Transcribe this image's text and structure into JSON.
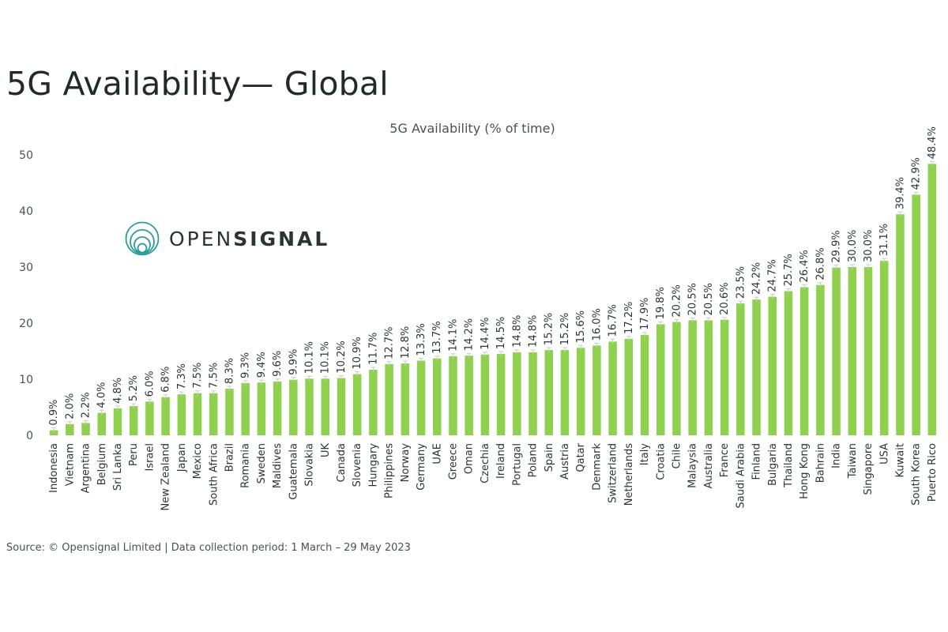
{
  "header": {
    "title": "5G Availability— Global"
  },
  "logo": {
    "icon": "opensignal-rings-icon",
    "text_light": "OPEN",
    "text_bold": "SIGNAL",
    "ring_color": "#2a9d9a"
  },
  "footer": {
    "source": "Source: © Opensignal Limited",
    "separator": "|",
    "period": "Data collection period: 1 March – 29 May 2023"
  },
  "chart_data": {
    "type": "bar",
    "title": "5G Availability (% of time)",
    "xlabel": "",
    "ylabel": "",
    "ylim": [
      0,
      50
    ],
    "yticks": [
      0,
      10,
      20,
      30,
      40,
      50
    ],
    "bar_color": "#8fd14f",
    "value_suffix": "%",
    "categories": [
      "Indonesia",
      "Vietnam",
      "Argentina",
      "Belgium",
      "Sri Lanka",
      "Peru",
      "Israel",
      "New Zealand",
      "Japan",
      "Mexico",
      "South Africa",
      "Brazil",
      "Romania",
      "Sweden",
      "Maldives",
      "Guatemala",
      "Slovakia",
      "UK",
      "Canada",
      "Slovenia",
      "Hungary",
      "Philippines",
      "Norway",
      "Germany",
      "UAE",
      "Greece",
      "Oman",
      "Czechia",
      "Ireland",
      "Portugal",
      "Poland",
      "Spain",
      "Austria",
      "Qatar",
      "Denmark",
      "Switzerland",
      "Netherlands",
      "Italy",
      "Croatia",
      "Chile",
      "Malaysia",
      "Australia",
      "France",
      "Saudi Arabia",
      "Finland",
      "Bulgaria",
      "Thailand",
      "Hong Kong",
      "Bahrain",
      "India",
      "Taiwan",
      "Singapore",
      "USA",
      "Kuwait",
      "South Korea",
      "Puerto Rico"
    ],
    "values": [
      0.9,
      2.0,
      2.2,
      4.0,
      4.8,
      5.2,
      6.0,
      6.8,
      7.3,
      7.5,
      7.5,
      8.3,
      9.3,
      9.4,
      9.6,
      9.9,
      10.1,
      10.1,
      10.2,
      10.9,
      11.7,
      12.7,
      12.8,
      13.3,
      13.7,
      14.1,
      14.2,
      14.4,
      14.5,
      14.8,
      14.8,
      15.2,
      15.2,
      15.6,
      16.0,
      16.7,
      17.2,
      17.9,
      19.8,
      20.2,
      20.5,
      20.5,
      20.6,
      23.5,
      24.2,
      24.7,
      25.7,
      26.4,
      26.8,
      29.9,
      30.0,
      30.0,
      31.1,
      39.4,
      42.9,
      48.4
    ]
  }
}
